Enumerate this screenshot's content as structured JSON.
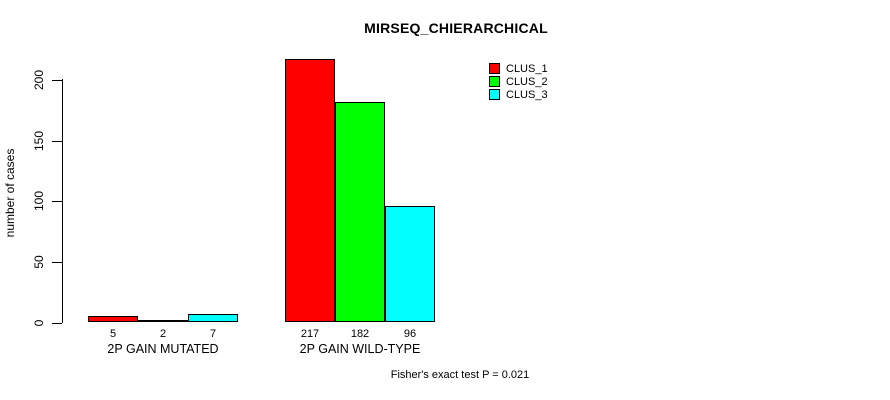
{
  "chart_data": {
    "type": "bar",
    "title": "MIRSEQ_CHIERARCHICAL",
    "ylabel": "number of cases",
    "xlabel": "",
    "ylim": [
      0,
      220
    ],
    "yticks": [
      0,
      50,
      100,
      150,
      200
    ],
    "categories": [
      "2P GAIN MUTATED",
      "2P GAIN WILD-TYPE"
    ],
    "series": [
      {
        "name": "CLUS_1",
        "color": "#FF0000",
        "values": [
          5,
          217
        ]
      },
      {
        "name": "CLUS_2",
        "color": "#00FF00",
        "values": [
          2,
          182
        ]
      },
      {
        "name": "CLUS_3",
        "color": "#00FFFF",
        "values": [
          7,
          96
        ]
      }
    ],
    "bar_value_labels_shown": true,
    "legend_position": "top-right",
    "grid": false,
    "annotation": "Fisher's exact test P = 0.021"
  }
}
